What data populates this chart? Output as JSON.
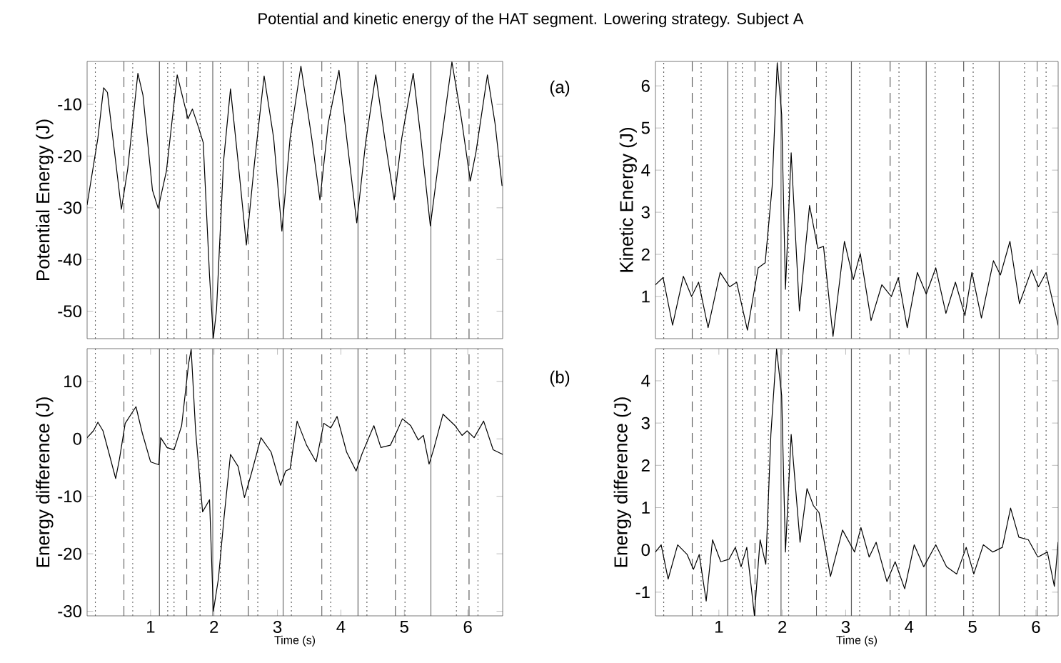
{
  "chart_data": [
    {
      "type": "line",
      "title": "Potential and kinetic energy of the HAT segment. Lowering strategy. Subject A",
      "ylabel": "Potential Energy (J)",
      "annotations": [
        "(a)"
      ],
      "tick_labels": "y",
      "xlim": [
        0,
        6.55
      ],
      "ylim": [
        -55.3,
        -1.7
      ],
      "yticks": [
        -50,
        -40,
        -30,
        -20,
        -10
      ],
      "color": "#000000",
      "x": [
        0.0,
        0.17,
        0.26,
        0.32,
        0.54,
        0.64,
        0.8,
        0.88,
        1.03,
        1.12,
        1.25,
        1.42,
        1.59,
        1.66,
        1.76,
        1.83,
        1.93,
        1.99,
        2.04,
        2.15,
        2.26,
        2.38,
        2.51,
        2.64,
        2.79,
        2.94,
        3.07,
        3.2,
        3.37,
        3.54,
        3.67,
        3.8,
        3.97,
        4.1,
        4.25,
        4.39,
        4.55,
        4.69,
        4.84,
        4.96,
        5.14,
        5.26,
        5.41,
        5.56,
        5.75,
        5.9,
        6.04,
        6.13,
        6.31,
        6.43,
        6.54
      ],
      "values": [
        -29.4,
        -16.5,
        -6.8,
        -7.7,
        -30.3,
        -22.5,
        -4.0,
        -8.2,
        -26.6,
        -30.1,
        -22.9,
        -4.3,
        -12.8,
        -10.9,
        -14.6,
        -17.4,
        -43.2,
        -55.2,
        -49.7,
        -21.1,
        -7.0,
        -21.1,
        -37.2,
        -21.1,
        -4.5,
        -16.5,
        -34.5,
        -16.5,
        -2.6,
        -16.5,
        -28.5,
        -13.7,
        -3.4,
        -17.4,
        -32.9,
        -17.4,
        -4.3,
        -16.5,
        -28.5,
        -16.5,
        -4.0,
        -16.5,
        -33.5,
        -19.2,
        -1.8,
        -12.8,
        -24.8,
        -19.2,
        -4.3,
        -13.7,
        -25.7
      ],
      "ref_lines": [
        {
          "axis": "x",
          "value": 0.13,
          "line_style": "dotted"
        },
        {
          "axis": "x",
          "value": 0.58,
          "line_style": "dashed"
        },
        {
          "axis": "x",
          "value": 0.72,
          "line_style": "dotted"
        },
        {
          "axis": "x",
          "value": 1.14,
          "line_style": "solid"
        },
        {
          "axis": "x",
          "value": 1.27,
          "line_style": "dotted"
        },
        {
          "axis": "x",
          "value": 1.37,
          "line_style": "dotted"
        },
        {
          "axis": "x",
          "value": 1.57,
          "line_style": "dashed"
        },
        {
          "axis": "x",
          "value": 1.78,
          "line_style": "dotted"
        },
        {
          "axis": "x",
          "value": 1.98,
          "line_style": "solid"
        },
        {
          "axis": "x",
          "value": 2.1,
          "line_style": "dotted"
        },
        {
          "axis": "x",
          "value": 2.54,
          "line_style": "dashed"
        },
        {
          "axis": "x",
          "value": 2.69,
          "line_style": "dotted"
        },
        {
          "axis": "x",
          "value": 3.09,
          "line_style": "solid"
        },
        {
          "axis": "x",
          "value": 3.22,
          "line_style": "dotted"
        },
        {
          "axis": "x",
          "value": 3.7,
          "line_style": "dashed"
        },
        {
          "axis": "x",
          "value": 3.84,
          "line_style": "dotted"
        },
        {
          "axis": "x",
          "value": 4.27,
          "line_style": "solid"
        },
        {
          "axis": "x",
          "value": 4.41,
          "line_style": "dotted"
        },
        {
          "axis": "x",
          "value": 4.86,
          "line_style": "dashed"
        },
        {
          "axis": "x",
          "value": 5.01,
          "line_style": "dotted"
        },
        {
          "axis": "x",
          "value": 5.42,
          "line_style": "solid"
        },
        {
          "axis": "x",
          "value": 5.82,
          "line_style": "dotted"
        },
        {
          "axis": "x",
          "value": 6.02,
          "line_style": "dashed"
        },
        {
          "axis": "x",
          "value": 6.16,
          "line_style": "dotted"
        }
      ]
    },
    {
      "type": "line",
      "ylabel": "Kinetic Energy (J)",
      "tick_labels": "y",
      "xlim": [
        0,
        6.35
      ],
      "ylim": [
        0,
        6.58
      ],
      "yticks": [
        1,
        2,
        3,
        4,
        5,
        6
      ],
      "color": "#000000",
      "x": [
        0.0,
        0.12,
        0.27,
        0.44,
        0.57,
        0.68,
        0.83,
        1.02,
        1.17,
        1.28,
        1.45,
        1.62,
        1.73,
        1.84,
        1.92,
        1.99,
        2.05,
        2.14,
        2.27,
        2.43,
        2.56,
        2.65,
        2.8,
        2.98,
        3.12,
        3.23,
        3.4,
        3.57,
        3.72,
        3.83,
        3.97,
        4.13,
        4.27,
        4.42,
        4.58,
        4.73,
        4.88,
        4.99,
        5.14,
        5.33,
        5.44,
        5.59,
        5.74,
        5.93,
        6.04,
        6.16,
        6.35
      ],
      "values": [
        1.28,
        1.45,
        0.32,
        1.48,
        1.0,
        1.34,
        0.26,
        1.57,
        1.23,
        1.34,
        0.2,
        1.68,
        1.8,
        3.61,
        6.55,
        5.32,
        1.17,
        4.41,
        0.66,
        3.16,
        2.14,
        2.19,
        0.05,
        2.31,
        1.4,
        2.02,
        0.43,
        1.28,
        1.0,
        1.45,
        0.26,
        1.57,
        1.06,
        1.68,
        0.6,
        1.34,
        0.55,
        1.57,
        0.49,
        1.85,
        1.51,
        2.31,
        0.83,
        1.63,
        1.23,
        1.57,
        0.32
      ],
      "ref_lines": [
        {
          "axis": "x",
          "value": 0.13,
          "line_style": "dotted"
        },
        {
          "axis": "x",
          "value": 0.58,
          "line_style": "dashed"
        },
        {
          "axis": "x",
          "value": 0.72,
          "line_style": "dotted"
        },
        {
          "axis": "x",
          "value": 1.14,
          "line_style": "solid"
        },
        {
          "axis": "x",
          "value": 1.27,
          "line_style": "dotted"
        },
        {
          "axis": "x",
          "value": 1.37,
          "line_style": "dotted"
        },
        {
          "axis": "x",
          "value": 1.57,
          "line_style": "dashed"
        },
        {
          "axis": "x",
          "value": 1.78,
          "line_style": "dotted"
        },
        {
          "axis": "x",
          "value": 1.98,
          "line_style": "solid"
        },
        {
          "axis": "x",
          "value": 2.1,
          "line_style": "dotted"
        },
        {
          "axis": "x",
          "value": 2.54,
          "line_style": "dashed"
        },
        {
          "axis": "x",
          "value": 2.69,
          "line_style": "dotted"
        },
        {
          "axis": "x",
          "value": 3.09,
          "line_style": "solid"
        },
        {
          "axis": "x",
          "value": 3.22,
          "line_style": "dotted"
        },
        {
          "axis": "x",
          "value": 3.7,
          "line_style": "dashed"
        },
        {
          "axis": "x",
          "value": 3.84,
          "line_style": "dotted"
        },
        {
          "axis": "x",
          "value": 4.27,
          "line_style": "solid"
        },
        {
          "axis": "x",
          "value": 4.41,
          "line_style": "dotted"
        },
        {
          "axis": "x",
          "value": 4.86,
          "line_style": "dashed"
        },
        {
          "axis": "x",
          "value": 5.01,
          "line_style": "dotted"
        },
        {
          "axis": "x",
          "value": 5.42,
          "line_style": "solid"
        },
        {
          "axis": "x",
          "value": 5.82,
          "line_style": "dotted"
        },
        {
          "axis": "x",
          "value": 6.02,
          "line_style": "dashed"
        },
        {
          "axis": "x",
          "value": 6.16,
          "line_style": "dotted"
        }
      ]
    },
    {
      "type": "line",
      "ylabel": "Energy difference (J)",
      "xlabel": "Time (s)",
      "annotations": [
        "(b)"
      ],
      "xlim": [
        0,
        6.55
      ],
      "ylim": [
        -30.8,
        15.7
      ],
      "xticks": [
        1,
        2,
        3,
        4,
        5,
        6
      ],
      "yticks": [
        -30,
        -20,
        -10,
        0,
        10
      ],
      "color": "#000000",
      "x": [
        0.0,
        0.1,
        0.17,
        0.25,
        0.35,
        0.45,
        0.51,
        0.6,
        0.77,
        0.87,
        1.0,
        1.13,
        1.16,
        1.26,
        1.37,
        1.49,
        1.6,
        1.64,
        1.71,
        1.82,
        1.93,
        1.99,
        2.07,
        2.16,
        2.26,
        2.38,
        2.48,
        2.59,
        2.74,
        2.9,
        3.05,
        3.13,
        3.2,
        3.31,
        3.46,
        3.61,
        3.73,
        3.84,
        3.94,
        4.09,
        4.24,
        4.33,
        4.52,
        4.63,
        4.78,
        4.87,
        4.97,
        5.1,
        5.22,
        5.3,
        5.39,
        5.46,
        5.61,
        5.8,
        5.91,
        5.99,
        6.1,
        6.25,
        6.4,
        6.55
      ],
      "values": [
        0.2,
        1.4,
        2.9,
        1.4,
        -2.7,
        -6.9,
        -3.5,
        2.7,
        5.6,
        1.0,
        -4.0,
        -4.5,
        0.2,
        -1.5,
        -1.9,
        2.3,
        13.1,
        15.6,
        1.4,
        -12.7,
        -10.6,
        -30.0,
        -24.3,
        -13.5,
        -2.7,
        -4.8,
        -10.2,
        -6.0,
        0.2,
        -2.3,
        -8.1,
        -5.6,
        -5.2,
        3.1,
        -1.1,
        -4.0,
        2.7,
        1.9,
        3.9,
        -2.3,
        -5.6,
        -2.7,
        2.3,
        -1.5,
        -1.1,
        1.0,
        3.5,
        2.3,
        -0.2,
        0.6,
        -4.4,
        -1.9,
        4.3,
        2.3,
        0.6,
        1.4,
        0.2,
        3.1,
        -1.9,
        -2.7
      ],
      "ref_lines": [
        {
          "axis": "x",
          "value": 0.13,
          "line_style": "dotted"
        },
        {
          "axis": "x",
          "value": 0.58,
          "line_style": "dashed"
        },
        {
          "axis": "x",
          "value": 0.72,
          "line_style": "dotted"
        },
        {
          "axis": "x",
          "value": 1.14,
          "line_style": "solid"
        },
        {
          "axis": "x",
          "value": 1.27,
          "line_style": "dotted"
        },
        {
          "axis": "x",
          "value": 1.37,
          "line_style": "dotted"
        },
        {
          "axis": "x",
          "value": 1.57,
          "line_style": "dashed"
        },
        {
          "axis": "x",
          "value": 1.78,
          "line_style": "dotted"
        },
        {
          "axis": "x",
          "value": 1.98,
          "line_style": "solid"
        },
        {
          "axis": "x",
          "value": 2.1,
          "line_style": "dotted"
        },
        {
          "axis": "x",
          "value": 2.54,
          "line_style": "dashed"
        },
        {
          "axis": "x",
          "value": 2.69,
          "line_style": "dotted"
        },
        {
          "axis": "x",
          "value": 3.09,
          "line_style": "solid"
        },
        {
          "axis": "x",
          "value": 3.22,
          "line_style": "dotted"
        },
        {
          "axis": "x",
          "value": 3.7,
          "line_style": "dashed"
        },
        {
          "axis": "x",
          "value": 3.84,
          "line_style": "dotted"
        },
        {
          "axis": "x",
          "value": 4.27,
          "line_style": "solid"
        },
        {
          "axis": "x",
          "value": 4.41,
          "line_style": "dotted"
        },
        {
          "axis": "x",
          "value": 4.86,
          "line_style": "dashed"
        },
        {
          "axis": "x",
          "value": 5.01,
          "line_style": "dotted"
        },
        {
          "axis": "x",
          "value": 5.42,
          "line_style": "solid"
        },
        {
          "axis": "x",
          "value": 5.82,
          "line_style": "dotted"
        },
        {
          "axis": "x",
          "value": 6.02,
          "line_style": "dashed"
        },
        {
          "axis": "x",
          "value": 6.16,
          "line_style": "dotted"
        }
      ]
    },
    {
      "type": "line",
      "ylabel": "Energy difference (J)",
      "xlabel": "Time (s)",
      "xlim": [
        0,
        6.35
      ],
      "ylim": [
        -1.56,
        4.76
      ],
      "xticks": [
        1,
        2,
        3,
        4,
        5,
        6
      ],
      "yticks": [
        -1,
        0,
        1,
        2,
        3,
        4
      ],
      "color": "#000000",
      "x": [
        0.0,
        0.09,
        0.2,
        0.35,
        0.5,
        0.6,
        0.69,
        0.8,
        0.9,
        1.03,
        1.16,
        1.26,
        1.35,
        1.44,
        1.56,
        1.65,
        1.74,
        1.82,
        1.91,
        1.99,
        2.05,
        2.14,
        2.28,
        2.39,
        2.49,
        2.58,
        2.76,
        2.95,
        3.14,
        3.24,
        3.37,
        3.48,
        3.65,
        3.78,
        3.93,
        4.08,
        4.23,
        4.42,
        4.59,
        4.75,
        4.9,
        5.02,
        5.17,
        5.32,
        5.47,
        5.6,
        5.73,
        5.88,
        6.03,
        6.18,
        6.29,
        6.35
      ],
      "values": [
        -0.05,
        0.12,
        -0.69,
        0.12,
        -0.11,
        -0.46,
        -0.11,
        -1.21,
        0.24,
        -0.28,
        -0.22,
        0.06,
        -0.4,
        0.06,
        -1.55,
        0.24,
        -0.34,
        2.73,
        4.75,
        3.65,
        -0.05,
        2.73,
        0.18,
        1.45,
        1.05,
        0.88,
        -0.63,
        0.47,
        -0.05,
        0.53,
        -0.17,
        0.18,
        -0.75,
        -0.28,
        -0.92,
        0.12,
        -0.4,
        0.12,
        -0.4,
        -0.57,
        0.06,
        -0.57,
        0.12,
        -0.05,
        0.06,
        0.99,
        0.3,
        0.24,
        -0.17,
        -0.05,
        -0.86,
        0.18
      ],
      "ref_lines": [
        {
          "axis": "x",
          "value": 0.13,
          "line_style": "dotted"
        },
        {
          "axis": "x",
          "value": 0.58,
          "line_style": "dashed"
        },
        {
          "axis": "x",
          "value": 0.72,
          "line_style": "dotted"
        },
        {
          "axis": "x",
          "value": 1.14,
          "line_style": "solid"
        },
        {
          "axis": "x",
          "value": 1.27,
          "line_style": "dotted"
        },
        {
          "axis": "x",
          "value": 1.37,
          "line_style": "dotted"
        },
        {
          "axis": "x",
          "value": 1.57,
          "line_style": "dashed"
        },
        {
          "axis": "x",
          "value": 1.78,
          "line_style": "dotted"
        },
        {
          "axis": "x",
          "value": 1.98,
          "line_style": "solid"
        },
        {
          "axis": "x",
          "value": 2.1,
          "line_style": "dotted"
        },
        {
          "axis": "x",
          "value": 2.54,
          "line_style": "dashed"
        },
        {
          "axis": "x",
          "value": 2.69,
          "line_style": "dotted"
        },
        {
          "axis": "x",
          "value": 3.09,
          "line_style": "solid"
        },
        {
          "axis": "x",
          "value": 3.22,
          "line_style": "dotted"
        },
        {
          "axis": "x",
          "value": 3.7,
          "line_style": "dashed"
        },
        {
          "axis": "x",
          "value": 3.84,
          "line_style": "dotted"
        },
        {
          "axis": "x",
          "value": 4.27,
          "line_style": "solid"
        },
        {
          "axis": "x",
          "value": 4.41,
          "line_style": "dotted"
        },
        {
          "axis": "x",
          "value": 4.86,
          "line_style": "dashed"
        },
        {
          "axis": "x",
          "value": 5.01,
          "line_style": "dotted"
        },
        {
          "axis": "x",
          "value": 5.42,
          "line_style": "solid"
        },
        {
          "axis": "x",
          "value": 5.82,
          "line_style": "dotted"
        },
        {
          "axis": "x",
          "value": 6.02,
          "line_style": "dashed"
        },
        {
          "axis": "x",
          "value": 6.16,
          "line_style": "dotted"
        }
      ]
    }
  ]
}
